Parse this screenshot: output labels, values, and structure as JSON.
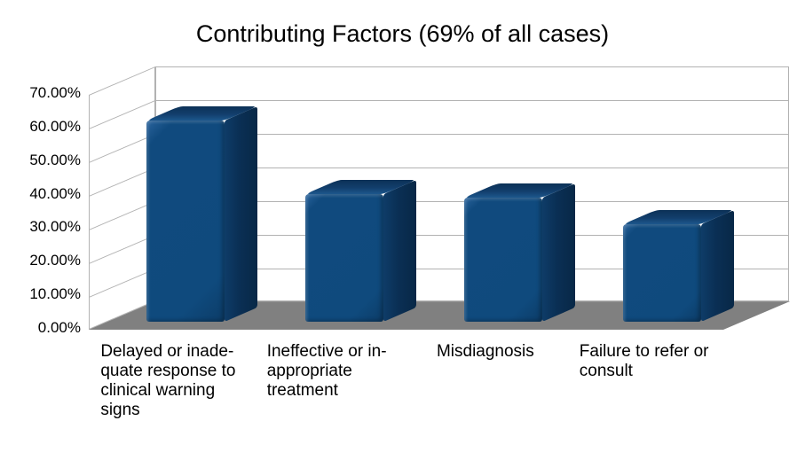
{
  "chart_data": {
    "type": "bar",
    "style": "3d-column",
    "title": "Contributing Factors (69% of all cases)",
    "categories": [
      "Delayed or inadequate response to clinical warning signs",
      "Ineffective or inappropriate treatment",
      "Misdiagnosis",
      "Failure to refer or consult"
    ],
    "category_labels_wrapped": [
      [
        "Delayed or inade-",
        "quate response to",
        "clinical warning",
        "signs"
      ],
      [
        "Ineffective or in-",
        "appropriate",
        "treatment"
      ],
      [
        "Misdiagnosis"
      ],
      [
        "Failure to refer or",
        "consult"
      ]
    ],
    "values": [
      60,
      38,
      37,
      29
    ],
    "unit": "%",
    "ylabel": "",
    "xlabel": "",
    "ylim": [
      0,
      70
    ],
    "y_tick_step": 10,
    "y_ticks": [
      "70.00%",
      "60.00%",
      "50.00%",
      "40.00%",
      "30.00%",
      "20.00%",
      "10.00%",
      "0.00%"
    ],
    "grid": true,
    "legend": "none",
    "colors": {
      "bar_front": "#0f4a7d",
      "bar_top": "#123e6c",
      "bar_side": "#0a2f54",
      "floor": "#808080",
      "wall_border": "#b2b2b2",
      "gridline": "#b2b2b2",
      "background": "#ffffff",
      "text": "#000000"
    }
  }
}
